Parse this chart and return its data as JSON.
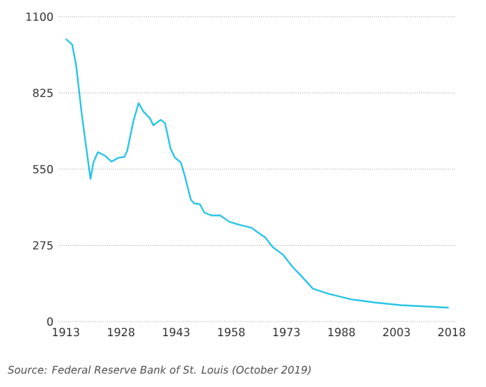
{
  "chart_data": {
    "type": "line",
    "color": "#29c4e6",
    "x": [
      1913,
      1914.7,
      1915.8,
      1917.4,
      1919.7,
      1920.5,
      1921.7,
      1923.6,
      1925.4,
      1927.3,
      1928.9,
      1929.7,
      1931.4,
      1932.8,
      1934.1,
      1935.9,
      1936.8,
      1938.8,
      1940,
      1941.5,
      1942.7,
      1944.3,
      1945.4,
      1947,
      1947.9,
      1949.5,
      1950.7,
      1952.6,
      1955,
      1957.5,
      1960,
      1963.6,
      1964.8,
      1967.3,
      1969.2,
      1972.2,
      1974.7,
      1977.1,
      1980.2,
      1984.5,
      1990.7,
      1996.9,
      2004.3,
      2011.7,
      2017.2
    ],
    "values": [
      1020,
      1000,
      925,
      741,
      515,
      574,
      611,
      599,
      577,
      591,
      594,
      616,
      724,
      788,
      758,
      733,
      708,
      728,
      716,
      624,
      591,
      574,
      524,
      440,
      427,
      423,
      393,
      383,
      383,
      360,
      350,
      338,
      326,
      303,
      270,
      240,
      197,
      164,
      119,
      100,
      80,
      69,
      59,
      54,
      50
    ],
    "xlim": [
      1911,
      2019
    ],
    "ylim": [
      0,
      1100
    ],
    "xticks": [
      1913,
      1928,
      1943,
      1958,
      1973,
      1988,
      2003,
      2018
    ],
    "yticks": [
      0,
      275,
      550,
      825,
      1100
    ],
    "grid": "y",
    "marker": "none",
    "line_style": "solid",
    "annotations": [
      "Source: Federal Reserve Bank of St. Louis (October 2019)"
    ]
  }
}
